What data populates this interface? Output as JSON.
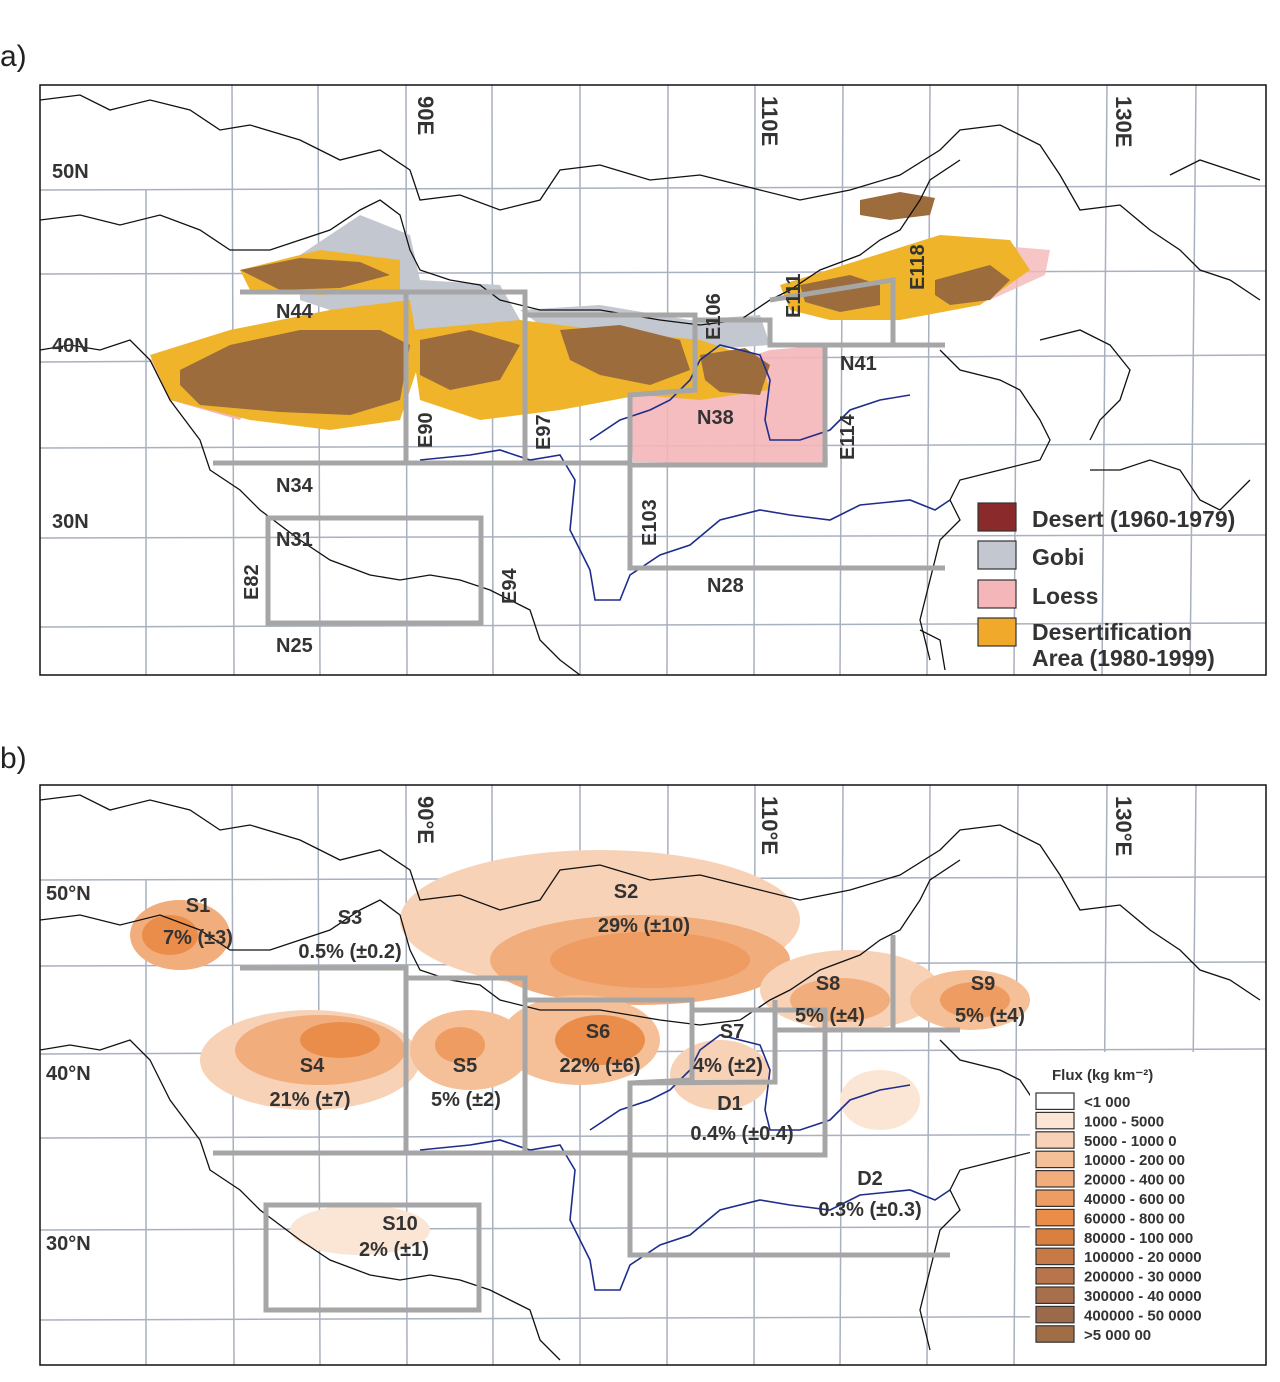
{
  "panel_a": {
    "letter": "a)",
    "lat_labels": [
      "50N",
      "40N",
      "30N"
    ],
    "lon_labels": [
      "90E",
      "110E",
      "130E"
    ],
    "region_labels": {
      "n44": "N44",
      "n34": "N34",
      "n31": "N31",
      "n25": "N25",
      "n38": "N38",
      "n41": "N41",
      "n28": "N28",
      "e82": "E82",
      "e90": "E90",
      "e94": "E94",
      "e97": "E97",
      "e103": "E103",
      "e106": "E106",
      "e111": "E111",
      "e114": "E114",
      "e118": "E118"
    },
    "legend": [
      {
        "label": "Desert (1960-1979)",
        "color": "#8b2a2a"
      },
      {
        "label": "Gobi",
        "color": "#c3c7cf"
      },
      {
        "label": "Loess",
        "color": "#f4b6b8"
      },
      {
        "label": "Desertification",
        "color": "#f0a92a"
      },
      {
        "label": "Area (1980-1999)",
        "color": ""
      }
    ],
    "colors": {
      "desert_brown": "#9c6c3c",
      "gobi": "#c3c7cf",
      "loess": "#f4b6b8",
      "desertification": "#f0b42a",
      "river": "#1e2d8c",
      "grid": "#a9b0bf",
      "box": "#a6a6a6"
    }
  },
  "panel_b": {
    "letter": "b)",
    "lat_labels": [
      "50°N",
      "40°N",
      "30°N"
    ],
    "lon_labels": [
      "90°E",
      "110°E",
      "130°E"
    ],
    "sources": [
      {
        "id": "S1",
        "share": "7% (±3)"
      },
      {
        "id": "S2",
        "share": "29% (±10)"
      },
      {
        "id": "S3",
        "share": "0.5% (±0.2)"
      },
      {
        "id": "S4",
        "share": "21% (±7)"
      },
      {
        "id": "S5",
        "share": "5% (±2)"
      },
      {
        "id": "S6",
        "share": "22% (±6)"
      },
      {
        "id": "S7",
        "share": "4% (±2)"
      },
      {
        "id": "S8",
        "share": "5% (±4)"
      },
      {
        "id": "S9",
        "share": "5% (±4)"
      },
      {
        "id": "S10",
        "share": "2% (±1)"
      },
      {
        "id": "D1",
        "share": "0.4% (±0.4)"
      },
      {
        "id": "D2",
        "share": "0.3% (±0.3)"
      }
    ],
    "legend_title": "Flux (kg km⁻²)",
    "legend": [
      {
        "label": "<1 000",
        "color": "#ffffff"
      },
      {
        "label": "1000 - 5000",
        "color": "#fbe6d6"
      },
      {
        "label": "5000 - 1000 0",
        "color": "#f8d2b7"
      },
      {
        "label": "10000 - 200 00",
        "color": "#f5bf98"
      },
      {
        "label": "20000 - 400 00",
        "color": "#f2ad7c"
      },
      {
        "label": "40000 - 600 00",
        "color": "#ee9c62"
      },
      {
        "label": "60000 - 800 00",
        "color": "#ea8c4a"
      },
      {
        "label": "80000 - 100 000",
        "color": "#d98040"
      },
      {
        "label": "100000 - 20 0000",
        "color": "#c77a45"
      },
      {
        "label": "200000 - 30 0000",
        "color": "#b8744a"
      },
      {
        "label": "300000 - 40 0000",
        "color": "#a86f4c"
      },
      {
        "label": "400000 - 50 0000",
        "color": "#9a6a4a"
      },
      {
        "label": ">5 000 00",
        "color": "#a06e46"
      }
    ]
  }
}
